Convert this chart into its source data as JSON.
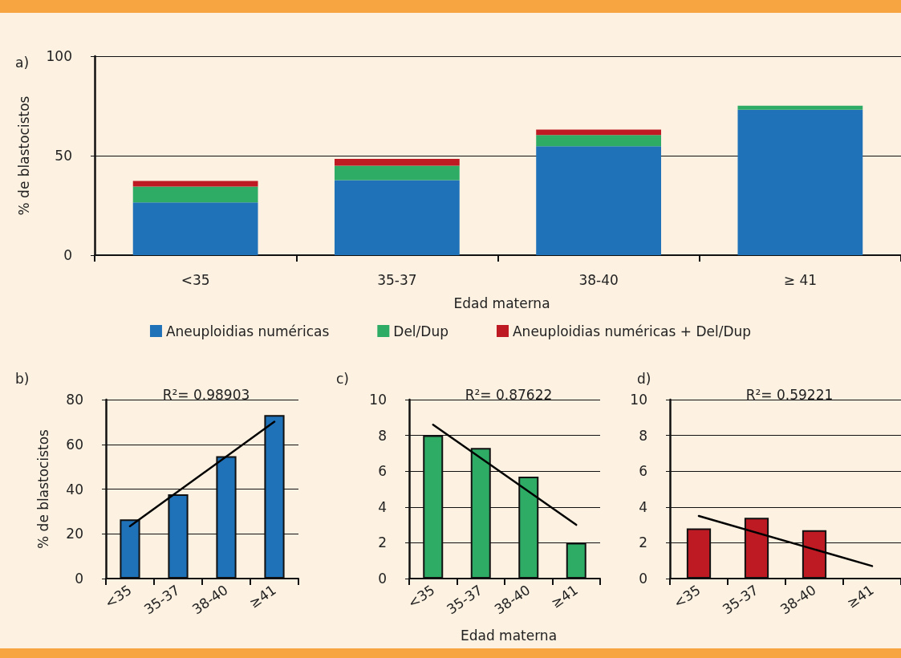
{
  "chart_data": [
    {
      "type": "bar",
      "title": "a)",
      "xlabel": "Edad materna",
      "ylabel": "% de blastocistos",
      "categories": [
        "<35",
        "35-37",
        "38-40",
        "≥ 41"
      ],
      "stacked": true,
      "series": [
        {
          "name": "Aneuploidias numéricas",
          "color": "#1f71b8",
          "values": [
            26.5,
            37.7,
            54.7,
            73.1
          ]
        },
        {
          "name": "Del/Dup",
          "color": "#2eac66",
          "values": [
            8,
            7.3,
            5.7,
            2
          ]
        },
        {
          "name": "Aneuploidias numéricas + Del/Dup",
          "color": "#be1a24",
          "values": [
            2.8,
            3.4,
            2.7,
            null
          ]
        }
      ],
      "ylim": [
        0,
        100
      ],
      "yticks": [
        0,
        50,
        100
      ],
      "grid": "y",
      "legend": "bottom"
    },
    {
      "type": "bar",
      "title": "b)",
      "subtitle": "R²= 0.98903",
      "ylabel": "% de blastocistos",
      "categories": [
        "<35",
        "35-37",
        "38-40",
        "≥41"
      ],
      "series": [
        {
          "color": "#1f71b8",
          "values": [
            26.5,
            37.7,
            54.7,
            73.1
          ]
        },
        {
          "type": "line",
          "color": "#000000",
          "x": [
            "<35",
            "≥41"
          ],
          "values": [
            23.4,
            70.1
          ]
        }
      ],
      "ylim": [
        0,
        80
      ],
      "yticks": [
        0,
        20,
        40,
        60,
        80
      ],
      "grid": "y",
      "marker": "none",
      "line_style": "solid"
    },
    {
      "type": "bar",
      "title": "c)",
      "subtitle": "R²= 0.87622",
      "xlabel": "Edad materna",
      "categories": [
        "<35",
        "35-37",
        "38-40",
        "≥41"
      ],
      "series": [
        {
          "color": "#2eac66",
          "values": [
            8,
            7.3,
            5.7,
            2
          ]
        },
        {
          "type": "line",
          "color": "#000000",
          "x": [
            "<35",
            "≥41"
          ],
          "values": [
            8.6,
            3
          ]
        }
      ],
      "ylim": [
        0,
        10
      ],
      "yticks": [
        0,
        2,
        4,
        6,
        8,
        10
      ],
      "grid": "y",
      "marker": "none",
      "line_style": "solid"
    },
    {
      "type": "bar",
      "title": "d)",
      "subtitle": "R²= 0.59221",
      "categories": [
        "<35",
        "35-37",
        "38-40",
        "≥41"
      ],
      "series": [
        {
          "color": "#be1a24",
          "values": [
            2.8,
            3.4,
            2.7,
            null
          ]
        },
        {
          "type": "line",
          "color": "#000000",
          "x": [
            "<35",
            "≥41"
          ],
          "values": [
            3.5,
            0.7
          ]
        }
      ],
      "ylim": [
        0,
        10
      ],
      "yticks": [
        0,
        2,
        4,
        6,
        8,
        10
      ],
      "grid": "y",
      "marker": "none",
      "line_style": "solid"
    }
  ]
}
